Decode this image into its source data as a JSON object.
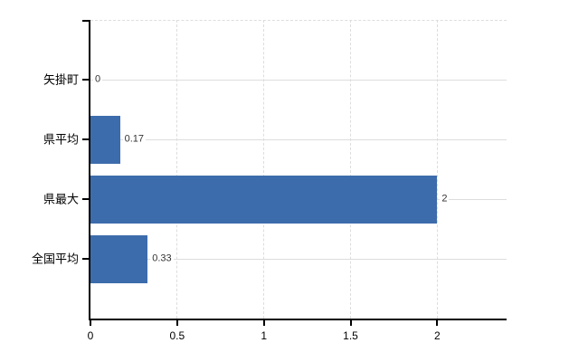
{
  "chart_data": {
    "type": "bar",
    "orientation": "horizontal",
    "title": "",
    "xlabel": "",
    "ylabel": "",
    "categories": [
      "矢掛町",
      "県平均",
      "県最大",
      "全国平均"
    ],
    "values": [
      0,
      0.17,
      2,
      0.33
    ],
    "value_labels": [
      "0",
      "0.17",
      "2",
      "0.33"
    ],
    "x_ticks": [
      0,
      0.5,
      1,
      1.5,
      2
    ],
    "x_tick_labels": [
      "0",
      "0.5",
      "1",
      "1.5",
      "2"
    ],
    "xlim": [
      0,
      2.4
    ],
    "grid": true,
    "legend": false,
    "colors": {
      "bar": "#3d6cac",
      "gridline": "#dddddd",
      "axis": "#000000",
      "category_text": "#000000",
      "tick_text": "#000000",
      "value_text": "#333333",
      "background": "#ffffff"
    }
  }
}
